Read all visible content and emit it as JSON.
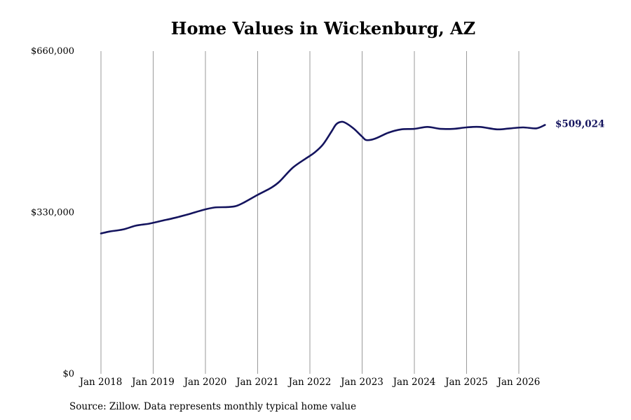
{
  "title": "Home Values in Wickenburg, AZ",
  "source": "Source: Zillow. Data represents monthly typical home value",
  "colors": {
    "line": "#14145e",
    "grid": "#9a9a9a",
    "text": "#000000"
  },
  "chart_data": {
    "type": "line",
    "title": "Home Values in Wickenburg, AZ",
    "xlabel": "",
    "ylabel": "",
    "ylim": [
      0,
      660000
    ],
    "yticks": [
      0,
      330000,
      660000
    ],
    "ytick_labels": [
      "$0",
      "$330,000",
      "$660,000"
    ],
    "xlim": [
      "2018-01",
      "2026-07"
    ],
    "xticks": [
      "2018-01",
      "2019-01",
      "2020-01",
      "2021-01",
      "2022-01",
      "2023-01",
      "2024-01",
      "2025-01",
      "2026-01"
    ],
    "xtick_labels": [
      "Jan 2018",
      "Jan 2019",
      "Jan 2020",
      "Jan 2021",
      "Jan 2022",
      "Jan 2023",
      "Jan 2024",
      "Jan 2025",
      "Jan 2026"
    ],
    "grid": "vertical",
    "end_label": "$509,024",
    "series": [
      {
        "color": "#14145e",
        "points": [
          [
            "2018-01",
            287000
          ],
          [
            "2018-03",
            291000
          ],
          [
            "2018-06",
            295000
          ],
          [
            "2018-09",
            303000
          ],
          [
            "2018-12",
            307000
          ],
          [
            "2019-03",
            313000
          ],
          [
            "2019-06",
            319000
          ],
          [
            "2019-09",
            326000
          ],
          [
            "2019-12",
            334000
          ],
          [
            "2020-03",
            340000
          ],
          [
            "2020-06",
            341000
          ],
          [
            "2020-08",
            343000
          ],
          [
            "2020-10",
            351000
          ],
          [
            "2021-01",
            366000
          ],
          [
            "2021-04",
            380000
          ],
          [
            "2021-06",
            393000
          ],
          [
            "2021-09",
            421000
          ],
          [
            "2021-12",
            440000
          ],
          [
            "2022-02",
            452000
          ],
          [
            "2022-04",
            469000
          ],
          [
            "2022-06",
            496000
          ],
          [
            "2022-07",
            510000
          ],
          [
            "2022-08",
            515000
          ],
          [
            "2022-09",
            514000
          ],
          [
            "2022-11",
            502000
          ],
          [
            "2023-01",
            485000
          ],
          [
            "2023-02",
            478000
          ],
          [
            "2023-04",
            481000
          ],
          [
            "2023-07",
            493000
          ],
          [
            "2023-10",
            500000
          ],
          [
            "2024-01",
            501000
          ],
          [
            "2024-04",
            505000
          ],
          [
            "2024-07",
            501000
          ],
          [
            "2024-10",
            501000
          ],
          [
            "2025-01",
            504000
          ],
          [
            "2025-04",
            505000
          ],
          [
            "2025-08",
            500000
          ],
          [
            "2025-11",
            502000
          ],
          [
            "2026-02",
            504000
          ],
          [
            "2026-05",
            502000
          ],
          [
            "2026-07",
            509024
          ]
        ]
      }
    ]
  }
}
